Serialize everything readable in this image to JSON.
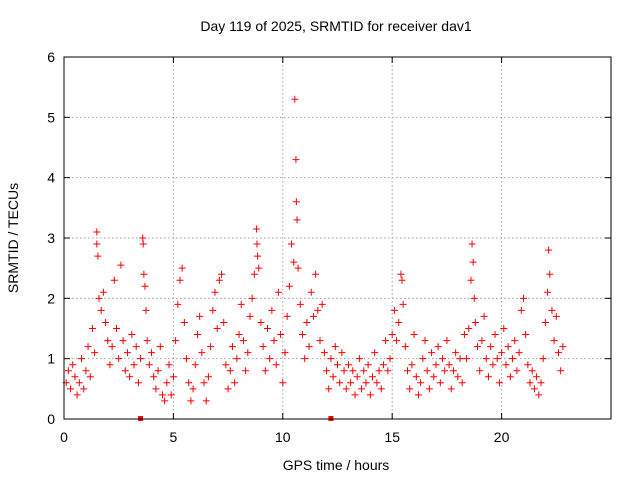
{
  "chart_data": {
    "type": "scatter",
    "title": "Day 119 of 2025, SRMTID for receiver dav1",
    "xlabel": "GPS time / hours",
    "ylabel": "SRMTID / TECUs",
    "xlim": [
      0,
      25
    ],
    "ylim": [
      0,
      6
    ],
    "xticks": [
      0,
      5,
      10,
      15,
      20
    ],
    "yticks": [
      0,
      1,
      2,
      3,
      4,
      5,
      6
    ],
    "xtick_labels": [
      "0",
      "5",
      "10",
      "15",
      "20"
    ],
    "ytick_labels": [
      "0",
      "1",
      "2",
      "3",
      "4",
      "5",
      "6"
    ],
    "grid": true,
    "marker": "plus",
    "color": "#ff0000",
    "series": [
      {
        "name": "SRMTID",
        "points": [
          [
            0.1,
            0.6
          ],
          [
            0.2,
            0.8
          ],
          [
            0.3,
            0.5
          ],
          [
            0.4,
            0.9
          ],
          [
            0.5,
            0.7
          ],
          [
            0.6,
            0.4
          ],
          [
            0.7,
            0.6
          ],
          [
            0.8,
            1.0
          ],
          [
            0.9,
            0.5
          ],
          [
            1.0,
            0.8
          ],
          [
            1.1,
            1.2
          ],
          [
            1.2,
            0.7
          ],
          [
            1.3,
            1.5
          ],
          [
            1.4,
            1.1
          ],
          [
            1.5,
            3.1
          ],
          [
            1.5,
            2.9
          ],
          [
            1.55,
            2.7
          ],
          [
            1.6,
            2.0
          ],
          [
            1.7,
            1.8
          ],
          [
            1.8,
            2.1
          ],
          [
            1.9,
            1.6
          ],
          [
            2.0,
            1.3
          ],
          [
            2.1,
            0.9
          ],
          [
            2.2,
            1.2
          ],
          [
            2.3,
            2.3
          ],
          [
            2.4,
            1.5
          ],
          [
            2.5,
            1.0
          ],
          [
            2.6,
            2.55
          ],
          [
            2.7,
            1.3
          ],
          [
            2.8,
            0.8
          ],
          [
            2.9,
            1.1
          ],
          [
            3.0,
            0.7
          ],
          [
            3.1,
            1.4
          ],
          [
            3.2,
            0.9
          ],
          [
            3.3,
            1.2
          ],
          [
            3.4,
            0.6
          ],
          [
            3.5,
            1.0
          ],
          [
            3.6,
            3.0
          ],
          [
            3.62,
            2.9
          ],
          [
            3.65,
            2.4
          ],
          [
            3.7,
            2.2
          ],
          [
            3.75,
            1.8
          ],
          [
            3.8,
            1.3
          ],
          [
            3.9,
            0.9
          ],
          [
            4.0,
            1.1
          ],
          [
            4.1,
            0.7
          ],
          [
            4.2,
            0.5
          ],
          [
            4.3,
            0.8
          ],
          [
            4.4,
            1.2
          ],
          [
            4.5,
            0.4
          ],
          [
            4.6,
            0.3
          ],
          [
            4.7,
            0.6
          ],
          [
            4.8,
            0.9
          ],
          [
            4.9,
            0.4
          ],
          [
            5.0,
            0.7
          ],
          [
            5.1,
            1.3
          ],
          [
            5.2,
            1.9
          ],
          [
            5.3,
            2.3
          ],
          [
            5.4,
            2.5
          ],
          [
            5.5,
            1.6
          ],
          [
            5.6,
            1.0
          ],
          [
            5.7,
            0.6
          ],
          [
            5.8,
            0.3
          ],
          [
            5.9,
            0.5
          ],
          [
            6.0,
            0.9
          ],
          [
            6.1,
            1.4
          ],
          [
            6.2,
            1.7
          ],
          [
            6.3,
            1.1
          ],
          [
            6.4,
            0.6
          ],
          [
            6.5,
            0.3
          ],
          [
            6.6,
            0.7
          ],
          [
            6.7,
            1.2
          ],
          [
            6.8,
            1.8
          ],
          [
            6.9,
            2.1
          ],
          [
            7.0,
            1.5
          ],
          [
            7.1,
            2.3
          ],
          [
            7.2,
            2.4
          ],
          [
            7.3,
            1.6
          ],
          [
            7.4,
            0.9
          ],
          [
            7.5,
            0.5
          ],
          [
            7.6,
            0.8
          ],
          [
            7.7,
            1.2
          ],
          [
            7.8,
            0.6
          ],
          [
            7.9,
            1.0
          ],
          [
            8.0,
            1.4
          ],
          [
            8.1,
            1.9
          ],
          [
            8.2,
            1.3
          ],
          [
            8.3,
            0.8
          ],
          [
            8.4,
            1.1
          ],
          [
            8.5,
            1.7
          ],
          [
            8.6,
            2.0
          ],
          [
            8.7,
            2.4
          ],
          [
            8.8,
            3.15
          ],
          [
            8.82,
            2.9
          ],
          [
            8.85,
            2.7
          ],
          [
            8.9,
            2.5
          ],
          [
            9.0,
            1.6
          ],
          [
            9.1,
            1.2
          ],
          [
            9.2,
            0.8
          ],
          [
            9.3,
            1.5
          ],
          [
            9.4,
            1.0
          ],
          [
            9.5,
            1.8
          ],
          [
            9.6,
            1.3
          ],
          [
            9.7,
            0.9
          ],
          [
            9.8,
            2.1
          ],
          [
            9.9,
            1.4
          ],
          [
            10.0,
            0.6
          ],
          [
            10.1,
            1.1
          ],
          [
            10.2,
            1.7
          ],
          [
            10.3,
            2.2
          ],
          [
            10.4,
            2.9
          ],
          [
            10.5,
            2.6
          ],
          [
            10.55,
            5.3
          ],
          [
            10.6,
            4.3
          ],
          [
            10.62,
            3.6
          ],
          [
            10.65,
            3.3
          ],
          [
            10.7,
            2.5
          ],
          [
            10.8,
            1.9
          ],
          [
            10.9,
            1.4
          ],
          [
            11.0,
            1.0
          ],
          [
            11.1,
            1.6
          ],
          [
            11.2,
            1.2
          ],
          [
            11.3,
            2.1
          ],
          [
            11.4,
            1.7
          ],
          [
            11.5,
            2.4
          ],
          [
            11.6,
            1.8
          ],
          [
            11.7,
            1.3
          ],
          [
            11.8,
            1.9
          ],
          [
            11.9,
            1.1
          ],
          [
            12.0,
            0.8
          ],
          [
            12.1,
            0.5
          ],
          [
            12.2,
            1.0
          ],
          [
            12.3,
            0.7
          ],
          [
            12.4,
            1.2
          ],
          [
            12.5,
            0.9
          ],
          [
            12.6,
            0.6
          ],
          [
            12.7,
            1.1
          ],
          [
            12.8,
            0.8
          ],
          [
            12.9,
            0.5
          ],
          [
            13.0,
            0.9
          ],
          [
            13.1,
            0.6
          ],
          [
            13.2,
            0.8
          ],
          [
            13.3,
            0.4
          ],
          [
            13.4,
            0.7
          ],
          [
            13.5,
            1.0
          ],
          [
            13.6,
            0.5
          ],
          [
            13.7,
            0.8
          ],
          [
            13.8,
            0.6
          ],
          [
            13.9,
            0.9
          ],
          [
            14.0,
            0.4
          ],
          [
            14.1,
            0.7
          ],
          [
            14.2,
            1.1
          ],
          [
            14.3,
            0.6
          ],
          [
            14.4,
            0.8
          ],
          [
            14.5,
            0.5
          ],
          [
            14.6,
            0.9
          ],
          [
            14.7,
            1.3
          ],
          [
            14.8,
            0.8
          ],
          [
            14.9,
            1.0
          ],
          [
            15.0,
            1.4
          ],
          [
            15.1,
            1.8
          ],
          [
            15.2,
            1.3
          ],
          [
            15.3,
            1.6
          ],
          [
            15.4,
            2.4
          ],
          [
            15.45,
            2.3
          ],
          [
            15.5,
            1.9
          ],
          [
            15.6,
            1.2
          ],
          [
            15.7,
            0.8
          ],
          [
            15.8,
            0.5
          ],
          [
            15.9,
            0.9
          ],
          [
            16.0,
            1.4
          ],
          [
            16.1,
            0.7
          ],
          [
            16.2,
            0.4
          ],
          [
            16.3,
            0.6
          ],
          [
            16.4,
            1.0
          ],
          [
            16.5,
            1.3
          ],
          [
            16.6,
            0.8
          ],
          [
            16.7,
            0.5
          ],
          [
            16.8,
            1.1
          ],
          [
            16.9,
            0.7
          ],
          [
            17.0,
            0.9
          ],
          [
            17.1,
            1.2
          ],
          [
            17.2,
            0.6
          ],
          [
            17.3,
            1.0
          ],
          [
            17.4,
            0.8
          ],
          [
            17.5,
            1.3
          ],
          [
            17.6,
            0.9
          ],
          [
            17.7,
            0.5
          ],
          [
            17.8,
            0.8
          ],
          [
            17.9,
            1.1
          ],
          [
            18.0,
            0.7
          ],
          [
            18.1,
            1.0
          ],
          [
            18.2,
            0.6
          ],
          [
            18.3,
            1.4
          ],
          [
            18.4,
            1.0
          ],
          [
            18.5,
            1.5
          ],
          [
            18.6,
            2.3
          ],
          [
            18.65,
            2.9
          ],
          [
            18.7,
            2.6
          ],
          [
            18.75,
            2.0
          ],
          [
            18.8,
            1.6
          ],
          [
            18.9,
            1.2
          ],
          [
            19.0,
            0.8
          ],
          [
            19.1,
            1.3
          ],
          [
            19.2,
            1.7
          ],
          [
            19.3,
            1.0
          ],
          [
            19.4,
            0.7
          ],
          [
            19.5,
            1.2
          ],
          [
            19.6,
            0.9
          ],
          [
            19.7,
            1.4
          ],
          [
            19.8,
            1.0
          ],
          [
            19.9,
            0.6
          ],
          [
            20.0,
            1.1
          ],
          [
            20.1,
            1.5
          ],
          [
            20.2,
            0.9
          ],
          [
            20.3,
            1.2
          ],
          [
            20.4,
            0.7
          ],
          [
            20.5,
            1.0
          ],
          [
            20.6,
            1.3
          ],
          [
            20.7,
            0.8
          ],
          [
            20.8,
            1.1
          ],
          [
            20.9,
            1.8
          ],
          [
            21.0,
            2.0
          ],
          [
            21.1,
            1.4
          ],
          [
            21.2,
            0.9
          ],
          [
            21.3,
            0.6
          ],
          [
            21.4,
            0.8
          ],
          [
            21.5,
            0.5
          ],
          [
            21.6,
            0.7
          ],
          [
            21.7,
            0.4
          ],
          [
            21.8,
            0.6
          ],
          [
            21.9,
            1.0
          ],
          [
            22.0,
            1.6
          ],
          [
            22.1,
            2.1
          ],
          [
            22.15,
            2.8
          ],
          [
            22.2,
            2.4
          ],
          [
            22.3,
            1.8
          ],
          [
            22.4,
            1.3
          ],
          [
            22.5,
            1.7
          ],
          [
            22.6,
            1.1
          ],
          [
            22.7,
            0.8
          ],
          [
            22.8,
            1.2
          ]
        ]
      }
    ],
    "markers_on_axis": [
      3.5,
      12.2
    ]
  }
}
